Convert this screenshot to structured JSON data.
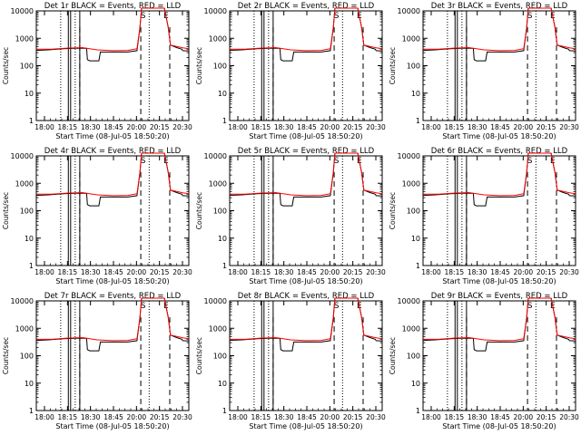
{
  "xtick_labels": [
    "18:00",
    "18:15",
    "18:30",
    "18:45",
    "20:00",
    "20:15",
    "20:30"
  ],
  "ytick_labels": [
    "10000",
    "1000",
    "100",
    "10",
    "1"
  ],
  "ylabel": "Counts/sec",
  "xlabel": "Start Time (08-Jul-05 18:50:20)",
  "colors": {
    "events": "#000000",
    "lld": "#ff0000"
  },
  "flag_labels": [
    "S",
    "E"
  ],
  "chart_data": [
    {
      "type": "line",
      "title": "Det 1r BLACK = Events, RED = LLD",
      "ylim": [
        1,
        10000
      ],
      "yscale": "log",
      "x_ticks": [
        "18:00",
        "18:15",
        "18:30",
        "18:45",
        "20:00",
        "20:15",
        "20:30"
      ],
      "y_ticks": [
        1,
        10,
        100,
        1000,
        10000
      ],
      "series": [
        {
          "name": "Events",
          "color": "black"
        },
        {
          "name": "LLD",
          "color": "red"
        }
      ]
    },
    {
      "type": "line",
      "title": "Det 2r BLACK = Events, RED = LLD",
      "ylim": [
        1,
        10000
      ],
      "yscale": "log",
      "x_ticks": [
        "18:00",
        "18:15",
        "18:30",
        "18:45",
        "20:00",
        "20:15",
        "20:30"
      ],
      "y_ticks": [
        1,
        10,
        100,
        1000,
        10000
      ],
      "series": [
        {
          "name": "Events",
          "color": "black"
        },
        {
          "name": "LLD",
          "color": "red"
        }
      ]
    },
    {
      "type": "line",
      "title": "Det 3r BLACK = Events, RED = LLD",
      "ylim": [
        1,
        10000
      ],
      "yscale": "log",
      "x_ticks": [
        "18:00",
        "18:15",
        "18:30",
        "18:45",
        "20:00",
        "20:15",
        "20:30"
      ],
      "y_ticks": [
        1,
        10,
        100,
        1000,
        10000
      ],
      "series": [
        {
          "name": "Events",
          "color": "black"
        },
        {
          "name": "LLD",
          "color": "red"
        }
      ]
    },
    {
      "type": "line",
      "title": "Det 4r BLACK = Events, RED = LLD",
      "ylim": [
        1,
        10000
      ],
      "yscale": "log",
      "x_ticks": [
        "18:00",
        "18:15",
        "18:30",
        "18:45",
        "20:00",
        "20:15",
        "20:30"
      ],
      "y_ticks": [
        1,
        10,
        100,
        1000,
        10000
      ],
      "series": [
        {
          "name": "Events",
          "color": "black"
        },
        {
          "name": "LLD",
          "color": "red"
        }
      ]
    },
    {
      "type": "line",
      "title": "Det 5r BLACK = Events, RED = LLD",
      "ylim": [
        1,
        10000
      ],
      "yscale": "log",
      "x_ticks": [
        "18:00",
        "18:15",
        "18:30",
        "18:45",
        "20:00",
        "20:15",
        "20:30"
      ],
      "y_ticks": [
        1,
        10,
        100,
        1000,
        10000
      ],
      "series": [
        {
          "name": "Events",
          "color": "black"
        },
        {
          "name": "LLD",
          "color": "red"
        }
      ]
    },
    {
      "type": "line",
      "title": "Det 6r BLACK = Events, RED = LLD",
      "ylim": [
        1,
        10000
      ],
      "yscale": "log",
      "x_ticks": [
        "18:00",
        "18:15",
        "18:30",
        "18:45",
        "20:00",
        "20:15",
        "20:30"
      ],
      "y_ticks": [
        1,
        10,
        100,
        1000,
        10000
      ],
      "series": [
        {
          "name": "Events",
          "color": "black"
        },
        {
          "name": "LLD",
          "color": "red"
        }
      ]
    },
    {
      "type": "line",
      "title": "Det 7r BLACK = Events, RED = LLD",
      "ylim": [
        1,
        10000
      ],
      "yscale": "log",
      "x_ticks": [
        "18:00",
        "18:15",
        "18:30",
        "18:45",
        "20:00",
        "20:15",
        "20:30"
      ],
      "y_ticks": [
        1,
        10,
        100,
        1000,
        10000
      ],
      "series": [
        {
          "name": "Events",
          "color": "black"
        },
        {
          "name": "LLD",
          "color": "red"
        }
      ]
    },
    {
      "type": "line",
      "title": "Det 8r BLACK = Events, RED = LLD",
      "ylim": [
        1,
        10000
      ],
      "yscale": "log",
      "x_ticks": [
        "18:00",
        "18:15",
        "18:30",
        "18:45",
        "20:00",
        "20:15",
        "20:30"
      ],
      "y_ticks": [
        1,
        10,
        100,
        1000,
        10000
      ],
      "series": [
        {
          "name": "Events",
          "color": "black"
        },
        {
          "name": "LLD",
          "color": "red"
        }
      ]
    },
    {
      "type": "line",
      "title": "Det 9r BLACK = Events, RED = LLD",
      "ylim": [
        1,
        10000
      ],
      "yscale": "log",
      "x_ticks": [
        "18:00",
        "18:15",
        "18:30",
        "18:45",
        "20:00",
        "20:15",
        "20:30"
      ],
      "y_ticks": [
        1,
        10,
        100,
        1000,
        10000
      ],
      "series": [
        {
          "name": "Events",
          "color": "black"
        },
        {
          "name": "LLD",
          "color": "red"
        }
      ]
    }
  ]
}
